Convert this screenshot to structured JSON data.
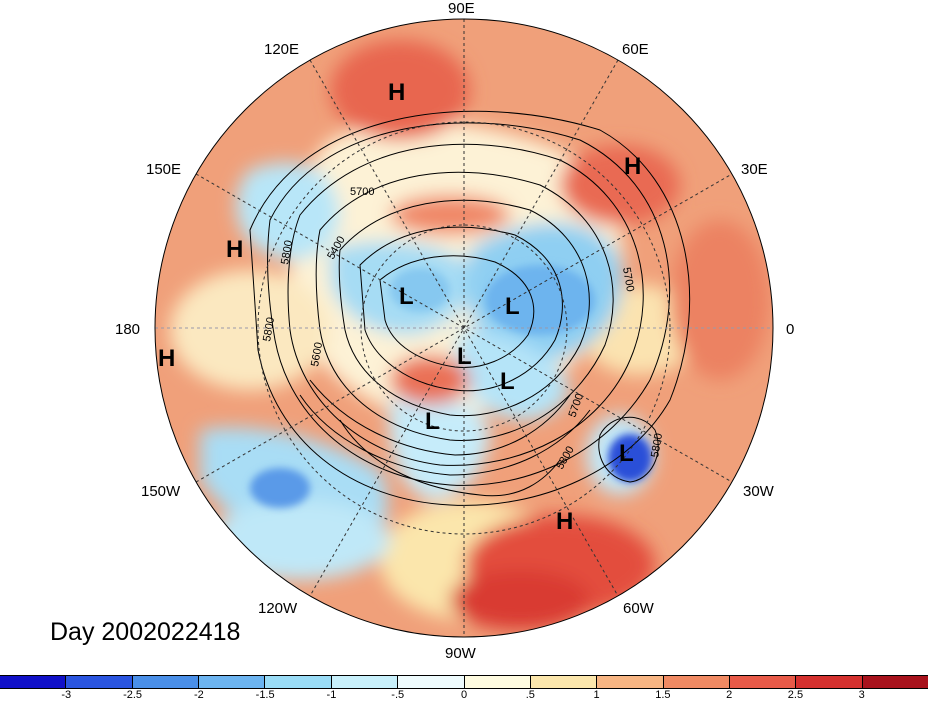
{
  "title_text": "Day 2002022418",
  "longitude_labels": [
    {
      "key": "90E",
      "text": "90E"
    },
    {
      "key": "60E",
      "text": "60E"
    },
    {
      "key": "30E",
      "text": "30E"
    },
    {
      "key": "0",
      "text": "0"
    },
    {
      "key": "30W",
      "text": "30W"
    },
    {
      "key": "60W",
      "text": "60W"
    },
    {
      "key": "90W",
      "text": "90W"
    },
    {
      "key": "120W",
      "text": "120W"
    },
    {
      "key": "150W",
      "text": "150W"
    },
    {
      "key": "180",
      "text": "180"
    },
    {
      "key": "150E",
      "text": "150E"
    },
    {
      "key": "120E",
      "text": "120E"
    }
  ],
  "pressure_systems": [
    {
      "key": "H-siberia",
      "text": "H"
    },
    {
      "key": "H-europe",
      "text": "H"
    },
    {
      "key": "H-pacific",
      "text": "H"
    },
    {
      "key": "H-dateline",
      "text": "H"
    },
    {
      "key": "H-atlantic",
      "text": "H"
    },
    {
      "key": "L-eastsib",
      "text": "L"
    },
    {
      "key": "L-kara",
      "text": "L"
    },
    {
      "key": "L-arctic",
      "text": "L"
    },
    {
      "key": "L-greenland",
      "text": "L"
    },
    {
      "key": "L-hudson",
      "text": "L"
    },
    {
      "key": "L-azores",
      "text": "L"
    }
  ],
  "contour_labels": [
    {
      "key": "c5700a",
      "text": "5700"
    },
    {
      "key": "c5400",
      "text": "5400"
    },
    {
      "key": "c5800a",
      "text": "5800"
    },
    {
      "key": "c5800b",
      "text": "5800"
    },
    {
      "key": "c5600",
      "text": "5600"
    },
    {
      "key": "c5700b",
      "text": "5700"
    },
    {
      "key": "c5700c",
      "text": "5700"
    },
    {
      "key": "c5800c",
      "text": "5800"
    },
    {
      "key": "c5800d",
      "text": "5800"
    }
  ],
  "colorbar": {
    "colors": [
      "#1010c8",
      "#2a55e0",
      "#4a8fe8",
      "#6cb4f0",
      "#9adcf6",
      "#c8f0fb",
      "#eefbfd",
      "#fefbe0",
      "#fbe6ac",
      "#f7b583",
      "#f08a63",
      "#e85a48",
      "#d4302e",
      "#a8121c"
    ],
    "tick_labels": [
      "-3",
      "-2.5",
      "-2",
      "-1.5",
      "-1",
      "-.5",
      "0",
      ".5",
      "1",
      "1.5",
      "2",
      "2.5",
      "3"
    ]
  },
  "colors": {
    "warm_background": "#f0a07a",
    "hot": "#e04a3c",
    "cold": "#8fd2f2",
    "deep_cold": "#2a60e0",
    "neutral": "#fdf4dc"
  }
}
